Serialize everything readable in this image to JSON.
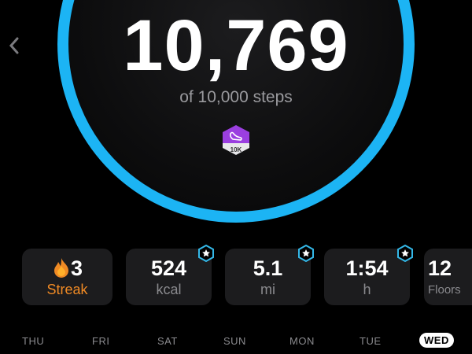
{
  "header": {
    "back_icon": "chevron-left-icon"
  },
  "progress": {
    "steps": "10,769",
    "goal_label": "of 10,000 steps",
    "fraction": 1.0,
    "ring_color": "#1cb4f4"
  },
  "badge": {
    "label": "10K",
    "icon": "shoe-icon",
    "color": "#9b3fe0"
  },
  "stats": [
    {
      "value": "3",
      "label": "Streak",
      "icon": "flame-icon",
      "color": "#f08a24"
    },
    {
      "value": "524",
      "label": "kcal",
      "starred": true
    },
    {
      "value": "5.1",
      "label": "mi",
      "starred": true
    },
    {
      "value": "1:54",
      "label": "h",
      "starred": true
    },
    {
      "value": "12",
      "label": "Floors"
    }
  ],
  "days": [
    "THU",
    "FRI",
    "SAT",
    "SUN",
    "MON",
    "TUE",
    "WED"
  ],
  "selected_day": "WED"
}
